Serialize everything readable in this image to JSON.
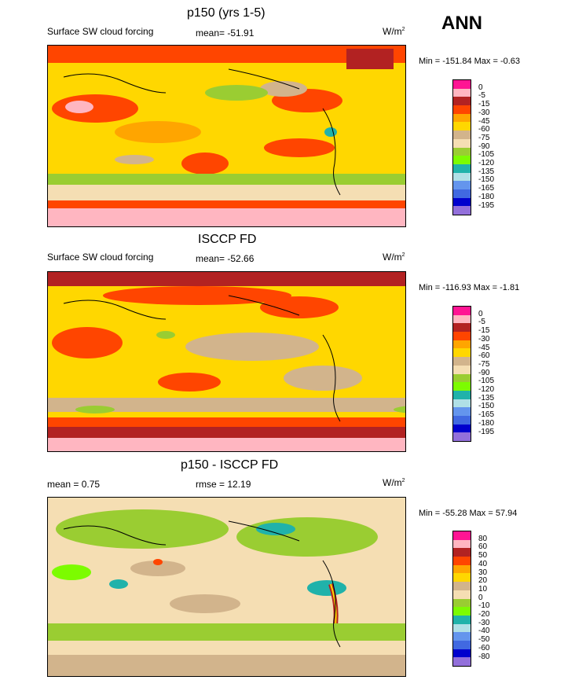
{
  "season": "ANN",
  "units_base": "W/m",
  "units_exp": "2",
  "panels": [
    {
      "title": "p150 (yrs 1-5)",
      "left_label": "Surface SW cloud forcing",
      "center_label": "mean= -51.91",
      "minmax": "Min = -151.84 Max =  -0.63",
      "legend": {
        "labels": [
          "0",
          "-5",
          "-15",
          "-30",
          "-45",
          "-60",
          "-75",
          "-90",
          "-105",
          "-120",
          "-135",
          "-150",
          "-165",
          "-180",
          "-195"
        ],
        "colors": [
          "#ff1493",
          "#ffb6c1",
          "#b22222",
          "#ff4500",
          "#ffa500",
          "#ffd700",
          "#d2b48c",
          "#f5deb3",
          "#9acd32",
          "#7cfc00",
          "#20b2aa",
          "#b0e0e6",
          "#6495ed",
          "#4169e1",
          "#0000cd",
          "#9370db"
        ]
      }
    },
    {
      "title": "ISCCP FD",
      "left_label": "Surface SW cloud forcing",
      "center_label": "mean= -52.66",
      "minmax": "Min = -116.93 Max =  -1.81",
      "legend": {
        "labels": [
          "0",
          "-5",
          "-15",
          "-30",
          "-45",
          "-60",
          "-75",
          "-90",
          "-105",
          "-120",
          "-135",
          "-150",
          "-165",
          "-180",
          "-195"
        ],
        "colors": [
          "#ff1493",
          "#ffb6c1",
          "#b22222",
          "#ff4500",
          "#ffa500",
          "#ffd700",
          "#d2b48c",
          "#f5deb3",
          "#9acd32",
          "#7cfc00",
          "#20b2aa",
          "#b0e0e6",
          "#6495ed",
          "#4169e1",
          "#0000cd",
          "#9370db"
        ]
      }
    },
    {
      "title": "p150 - ISCCP FD",
      "left_label": "mean =   0.75",
      "center_label": "rmse =  12.19",
      "minmax": "Min = -55.28 Max =  57.94",
      "legend": {
        "labels": [
          "80",
          "60",
          "50",
          "40",
          "30",
          "20",
          "10",
          "0",
          "-10",
          "-20",
          "-30",
          "-40",
          "-50",
          "-60",
          "-80"
        ],
        "colors": [
          "#ff1493",
          "#ffb6c1",
          "#b22222",
          "#ff4500",
          "#ffa500",
          "#ffd700",
          "#d2b48c",
          "#f5deb3",
          "#9acd32",
          "#7cfc00",
          "#20b2aa",
          "#b0e0e6",
          "#6495ed",
          "#4169e1",
          "#0000cd",
          "#9370db"
        ]
      }
    }
  ]
}
